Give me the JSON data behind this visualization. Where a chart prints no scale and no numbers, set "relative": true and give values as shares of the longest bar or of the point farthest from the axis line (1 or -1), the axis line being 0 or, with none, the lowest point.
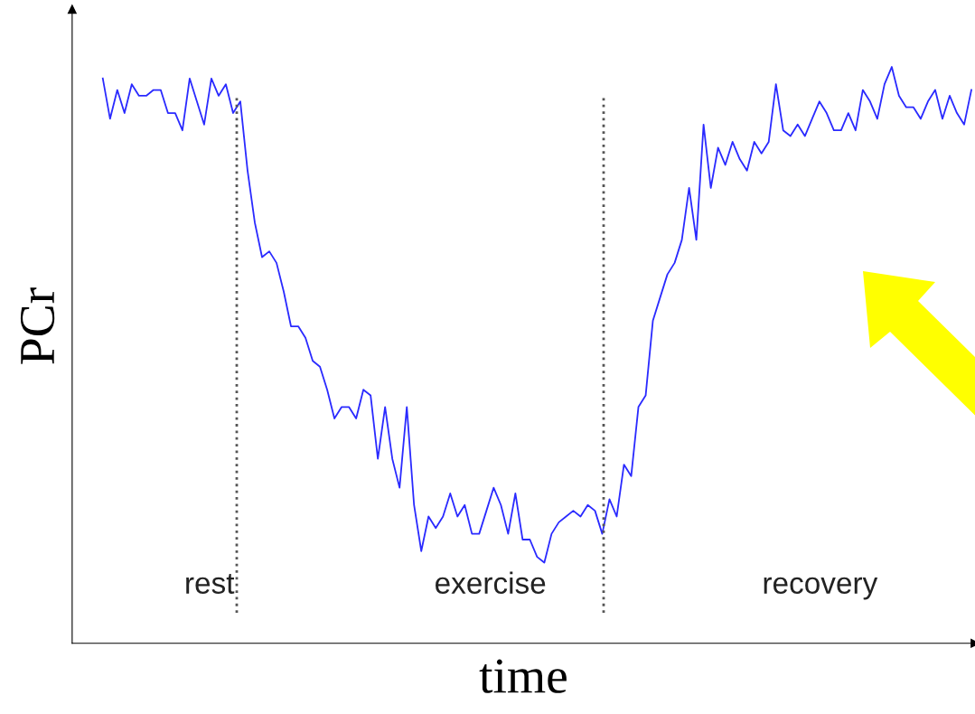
{
  "chart_data": {
    "type": "line",
    "xlabel": "time",
    "ylabel": "PCr",
    "relative": true,
    "categories": [
      null,
      null,
      null,
      null,
      null,
      null,
      null,
      null,
      null,
      null,
      null,
      null,
      null,
      null,
      null,
      null,
      null,
      null,
      null,
      null,
      null,
      null,
      null,
      null,
      null,
      null,
      null,
      null,
      null,
      null,
      null,
      null,
      null,
      null,
      null,
      null,
      null,
      null,
      null,
      null,
      null,
      null,
      null,
      null,
      null,
      null,
      null,
      null,
      null,
      null,
      null,
      null,
      null,
      null,
      null,
      null,
      null,
      null,
      null,
      null,
      null,
      null,
      null,
      null,
      null,
      null,
      null,
      null,
      null,
      null,
      null,
      null,
      null,
      null,
      null,
      null,
      null,
      null,
      null,
      null,
      null,
      null,
      null,
      null,
      null,
      null,
      null,
      null,
      null,
      null,
      null,
      null,
      null,
      null,
      null,
      null,
      null,
      null,
      null,
      null,
      null,
      null,
      null,
      null,
      null,
      null,
      null,
      null,
      null,
      null,
      null,
      null,
      null,
      null,
      null,
      null,
      null,
      null,
      null,
      null,
      null
    ],
    "series": [
      {
        "color": "#2a2aff",
        "values": [
          0.98,
          0.91,
          0.96,
          0.92,
          0.97,
          0.95,
          0.95,
          0.96,
          0.96,
          0.92,
          0.92,
          0.89,
          0.98,
          0.94,
          0.9,
          0.98,
          0.95,
          0.97,
          0.92,
          0.94,
          0.82,
          0.73,
          0.67,
          0.68,
          0.66,
          0.61,
          0.55,
          0.55,
          0.53,
          0.49,
          0.48,
          0.44,
          0.39,
          0.41,
          0.41,
          0.39,
          0.44,
          0.43,
          0.32,
          0.41,
          0.32,
          0.27,
          0.41,
          0.24,
          0.16,
          0.22,
          0.2,
          0.22,
          0.26,
          0.22,
          0.24,
          0.19,
          0.19,
          0.23,
          0.27,
          0.24,
          0.19,
          0.26,
          0.18,
          0.18,
          0.15,
          0.14,
          0.19,
          0.21,
          0.22,
          0.23,
          0.22,
          0.24,
          0.23,
          0.19,
          0.25,
          0.22,
          0.31,
          0.29,
          0.41,
          0.43,
          0.56,
          0.6,
          0.64,
          0.66,
          0.7,
          0.79,
          0.7,
          0.9,
          0.79,
          0.86,
          0.83,
          0.87,
          0.84,
          0.82,
          0.87,
          0.85,
          0.87,
          0.97,
          0.89,
          0.88,
          0.9,
          0.88,
          0.91,
          0.94,
          0.92,
          0.89,
          0.89,
          0.92,
          0.89,
          0.96,
          0.94,
          0.91,
          0.97,
          1.0,
          0.95,
          0.93,
          0.93,
          0.91,
          0.94,
          0.96,
          0.91,
          0.95,
          0.92,
          0.9,
          0.96
        ]
      }
    ],
    "annotations": [
      "rest",
      "exercise",
      "recovery"
    ]
  }
}
